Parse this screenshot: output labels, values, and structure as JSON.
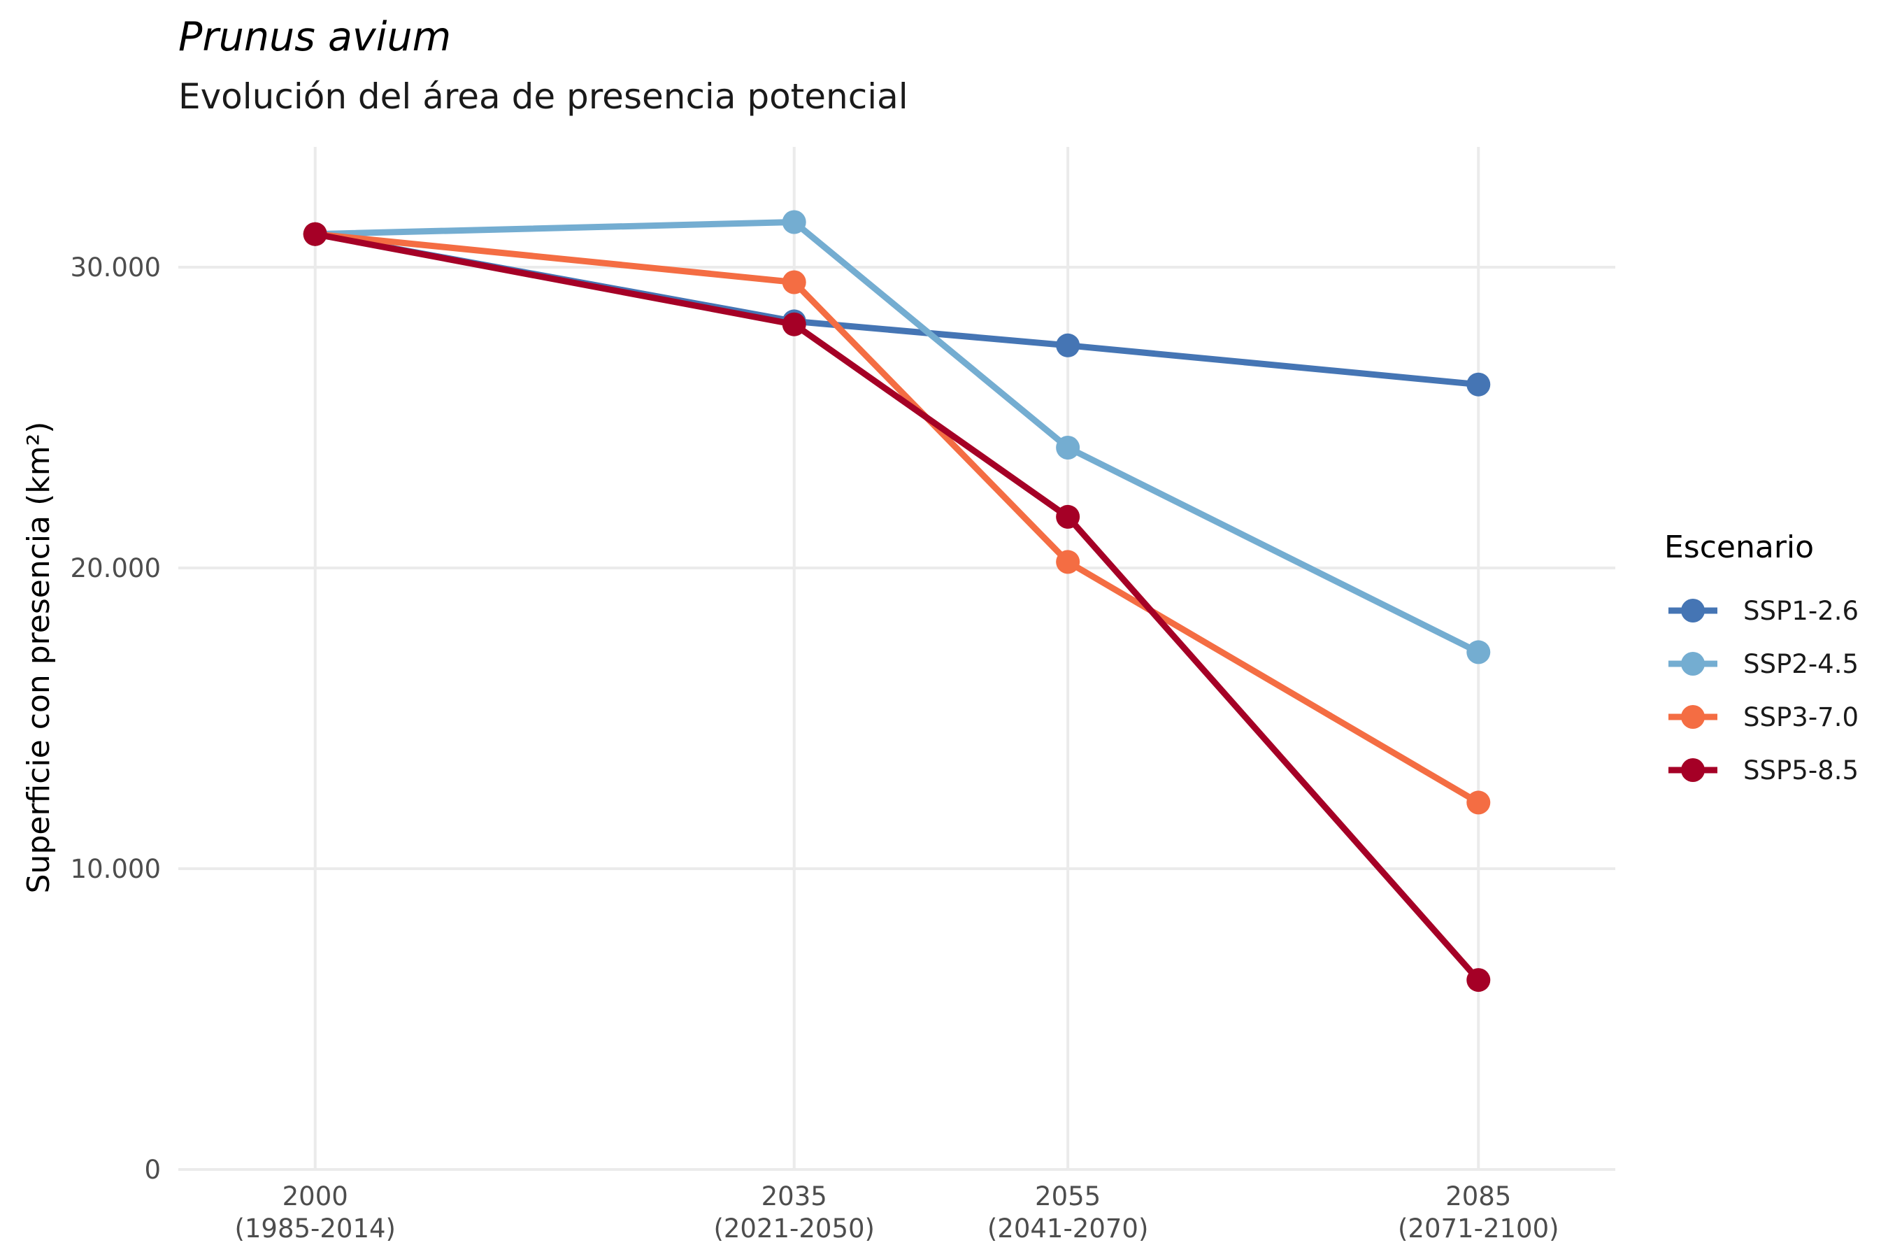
{
  "chart_data": {
    "type": "line",
    "title": "Prunus avium",
    "subtitle": "Evolución del área de presencia potencial",
    "xlabel": "",
    "ylabel": "Superficie con presencia (km²)",
    "x": [
      2000,
      2035,
      2055,
      2085
    ],
    "x_tick_labels": [
      [
        "2000",
        "(1985-2014)"
      ],
      [
        "2035",
        "(2021-2050)"
      ],
      [
        "2055",
        "(2041-2070)"
      ],
      [
        "2085",
        "(2071-2100)"
      ]
    ],
    "xlim": [
      1990,
      2095
    ],
    "ylim": [
      0,
      34000
    ],
    "y_ticks": [
      0,
      10000,
      20000,
      30000
    ],
    "y_tick_labels": [
      "0",
      "10.000",
      "20.000",
      "30.000"
    ],
    "grid": true,
    "legend": {
      "title": "Escenario",
      "placement": "right"
    },
    "series": [
      {
        "name": "SSP1-2.6",
        "color": "#4575b4",
        "values": [
          31100,
          28200,
          27400,
          26100
        ]
      },
      {
        "name": "SSP2-4.5",
        "color": "#74add1",
        "values": [
          31100,
          31500,
          24000,
          17200
        ]
      },
      {
        "name": "SSP3-7.0",
        "color": "#f46d43",
        "values": [
          31100,
          29500,
          20200,
          12200
        ]
      },
      {
        "name": "SSP5-8.5",
        "color": "#a50026",
        "values": [
          31100,
          28100,
          21700,
          6300
        ]
      }
    ]
  }
}
